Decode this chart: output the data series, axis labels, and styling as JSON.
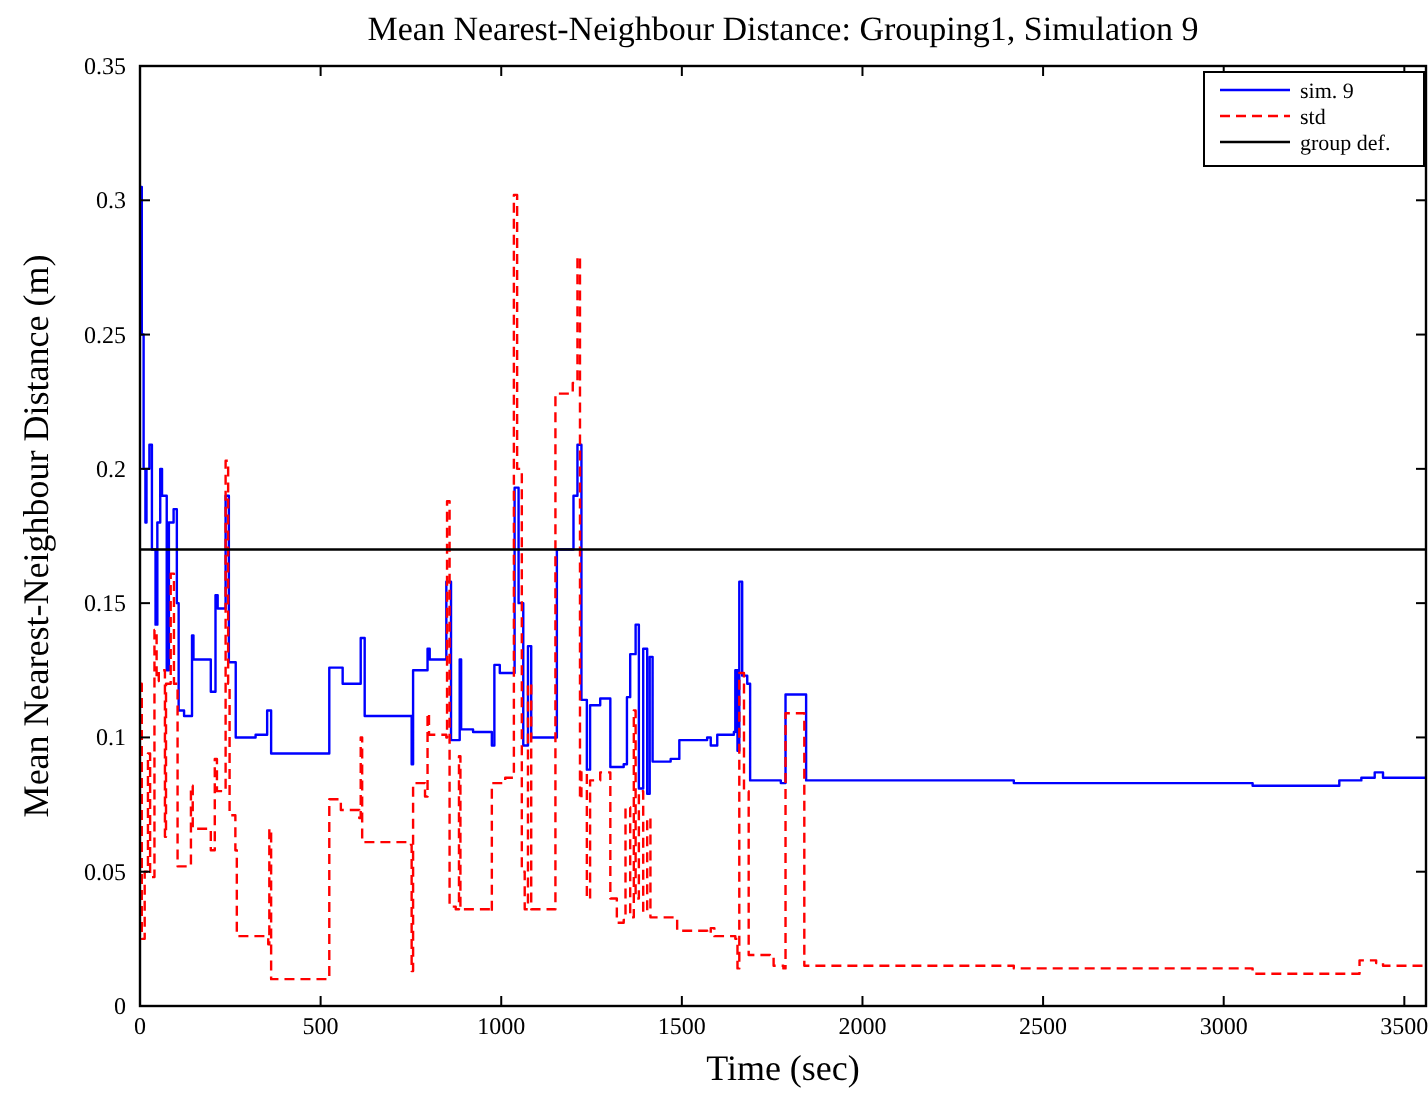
{
  "chart_data": {
    "type": "step",
    "title": "Mean Nearest-Neighbour Distance: Grouping1, Simulation 9",
    "xlabel": "Time (sec)",
    "ylabel": "Mean Nearest-Neighbour Distance (m)",
    "xlim": [
      0,
      3560
    ],
    "xticks": [
      0,
      500,
      1000,
      1500,
      2000,
      2500,
      3000,
      3500
    ],
    "ylim": [
      0,
      0.35
    ],
    "yticks": [
      0,
      0.05,
      0.1,
      0.15,
      0.2,
      0.25,
      0.3,
      0.35
    ],
    "grid": false,
    "legend": "top right",
    "series": [
      {
        "name": "sim. 9",
        "color": "#0000ff",
        "line_style": "solid",
        "x": [
          0,
          3,
          5,
          10,
          15,
          18,
          26,
          33,
          43,
          48,
          56,
          61,
          74,
          80,
          93,
          102,
          107,
          122,
          144,
          148,
          196,
          209,
          215,
          237,
          246,
          265,
          320,
          352,
          363,
          515,
          524,
          561,
          611,
          622,
          752,
          756,
          796,
          802,
          848,
          861,
          885,
          889,
          922,
          974,
          981,
          996,
          1024,
          1037,
          1048,
          1061,
          1074,
          1083,
          1148,
          1154,
          1200,
          1211,
          1222,
          1237,
          1246,
          1274,
          1302,
          1339,
          1348,
          1357,
          1372,
          1381,
          1393,
          1404,
          1411,
          1419,
          1469,
          1493,
          1570,
          1580,
          1598,
          1644,
          1648,
          1654,
          1659,
          1667,
          1681,
          1689,
          1774,
          1787,
          1826,
          1844,
          2181,
          2419,
          3080,
          3320,
          3381,
          3418,
          3441,
          3560
        ],
        "values": [
          0.28,
          0.305,
          0.25,
          0.2,
          0.18,
          0.2,
          0.209,
          0.17,
          0.142,
          0.18,
          0.2,
          0.19,
          0.125,
          0.18,
          0.185,
          0.15,
          0.11,
          0.108,
          0.138,
          0.129,
          0.117,
          0.153,
          0.148,
          0.19,
          0.128,
          0.1,
          0.101,
          0.11,
          0.094,
          0.094,
          0.126,
          0.12,
          0.137,
          0.108,
          0.09,
          0.125,
          0.133,
          0.129,
          0.158,
          0.099,
          0.129,
          0.103,
          0.102,
          0.097,
          0.127,
          0.124,
          0.124,
          0.193,
          0.15,
          0.097,
          0.134,
          0.1,
          0.1,
          0.17,
          0.19,
          0.209,
          0.114,
          0.088,
          0.112,
          0.1145,
          0.089,
          0.09,
          0.115,
          0.131,
          0.142,
          0.081,
          0.133,
          0.079,
          0.13,
          0.091,
          0.092,
          0.099,
          0.1,
          0.097,
          0.101,
          0.102,
          0.125,
          0.095,
          0.158,
          0.123,
          0.12,
          0.084,
          0.083,
          0.116,
          0.116,
          0.084,
          0.084,
          0.083,
          0.082,
          0.084,
          0.085,
          0.087,
          0.085,
          0.085
        ]
      },
      {
        "name": "std",
        "color": "#ff0000",
        "line_style": "dashed",
        "x": [
          0,
          5,
          13,
          22,
          28,
          40,
          46,
          52,
          69,
          72,
          85,
          94,
          104,
          141,
          146,
          196,
          207,
          213,
          237,
          244,
          248,
          264,
          268,
          355,
          358,
          363,
          520,
          524,
          556,
          607,
          611,
          615,
          750,
          752,
          756,
          789,
          796,
          800,
          848,
          850,
          857,
          874,
          883,
          887,
          970,
          974,
          1011,
          1035,
          1044,
          1057,
          1065,
          1074,
          1083,
          1144,
          1150,
          1198,
          1211,
          1218,
          1222,
          1237,
          1246,
          1274,
          1302,
          1320,
          1339,
          1344,
          1357,
          1367,
          1372,
          1381,
          1393,
          1404,
          1413,
          1459,
          1487,
          1570,
          1580,
          1590,
          1648,
          1654,
          1659,
          1672,
          1685,
          1744,
          1754,
          1781,
          1787,
          1826,
          1839,
          2419,
          3080,
          3376,
          3422,
          3441,
          3560
        ],
        "values": [
          0.12,
          0.025,
          0.05,
          0.094,
          0.048,
          0.14,
          0.121,
          0.125,
          0.063,
          0.12,
          0.161,
          0.12,
          0.052,
          0.082,
          0.066,
          0.058,
          0.092,
          0.08,
          0.203,
          0.12,
          0.071,
          0.058,
          0.026,
          0.023,
          0.066,
          0.01,
          0.01,
          0.077,
          0.073,
          0.07,
          0.1,
          0.061,
          0.06,
          0.013,
          0.083,
          0.078,
          0.109,
          0.101,
          0.1,
          0.188,
          0.037,
          0.036,
          0.093,
          0.036,
          0.035,
          0.083,
          0.085,
          0.302,
          0.2,
          0.05,
          0.036,
          0.12,
          0.036,
          0.036,
          0.228,
          0.232,
          0.279,
          0.077,
          0.087,
          0.04,
          0.084,
          0.087,
          0.04,
          0.031,
          0.032,
          0.074,
          0.033,
          0.11,
          0.04,
          0.08,
          0.035,
          0.07,
          0.033,
          0.033,
          0.028,
          0.027,
          0.029,
          0.026,
          0.025,
          0.014,
          0.124,
          0.08,
          0.019,
          0.018,
          0.015,
          0.014,
          0.109,
          0.109,
          0.015,
          0.014,
          0.012,
          0.017,
          0.016,
          0.015,
          0.015
        ]
      },
      {
        "name": "group def.",
        "type": "line",
        "color": "#000000",
        "line_style": "solid",
        "x": [
          0,
          3560
        ],
        "values": [
          0.17,
          0.17
        ]
      }
    ]
  }
}
